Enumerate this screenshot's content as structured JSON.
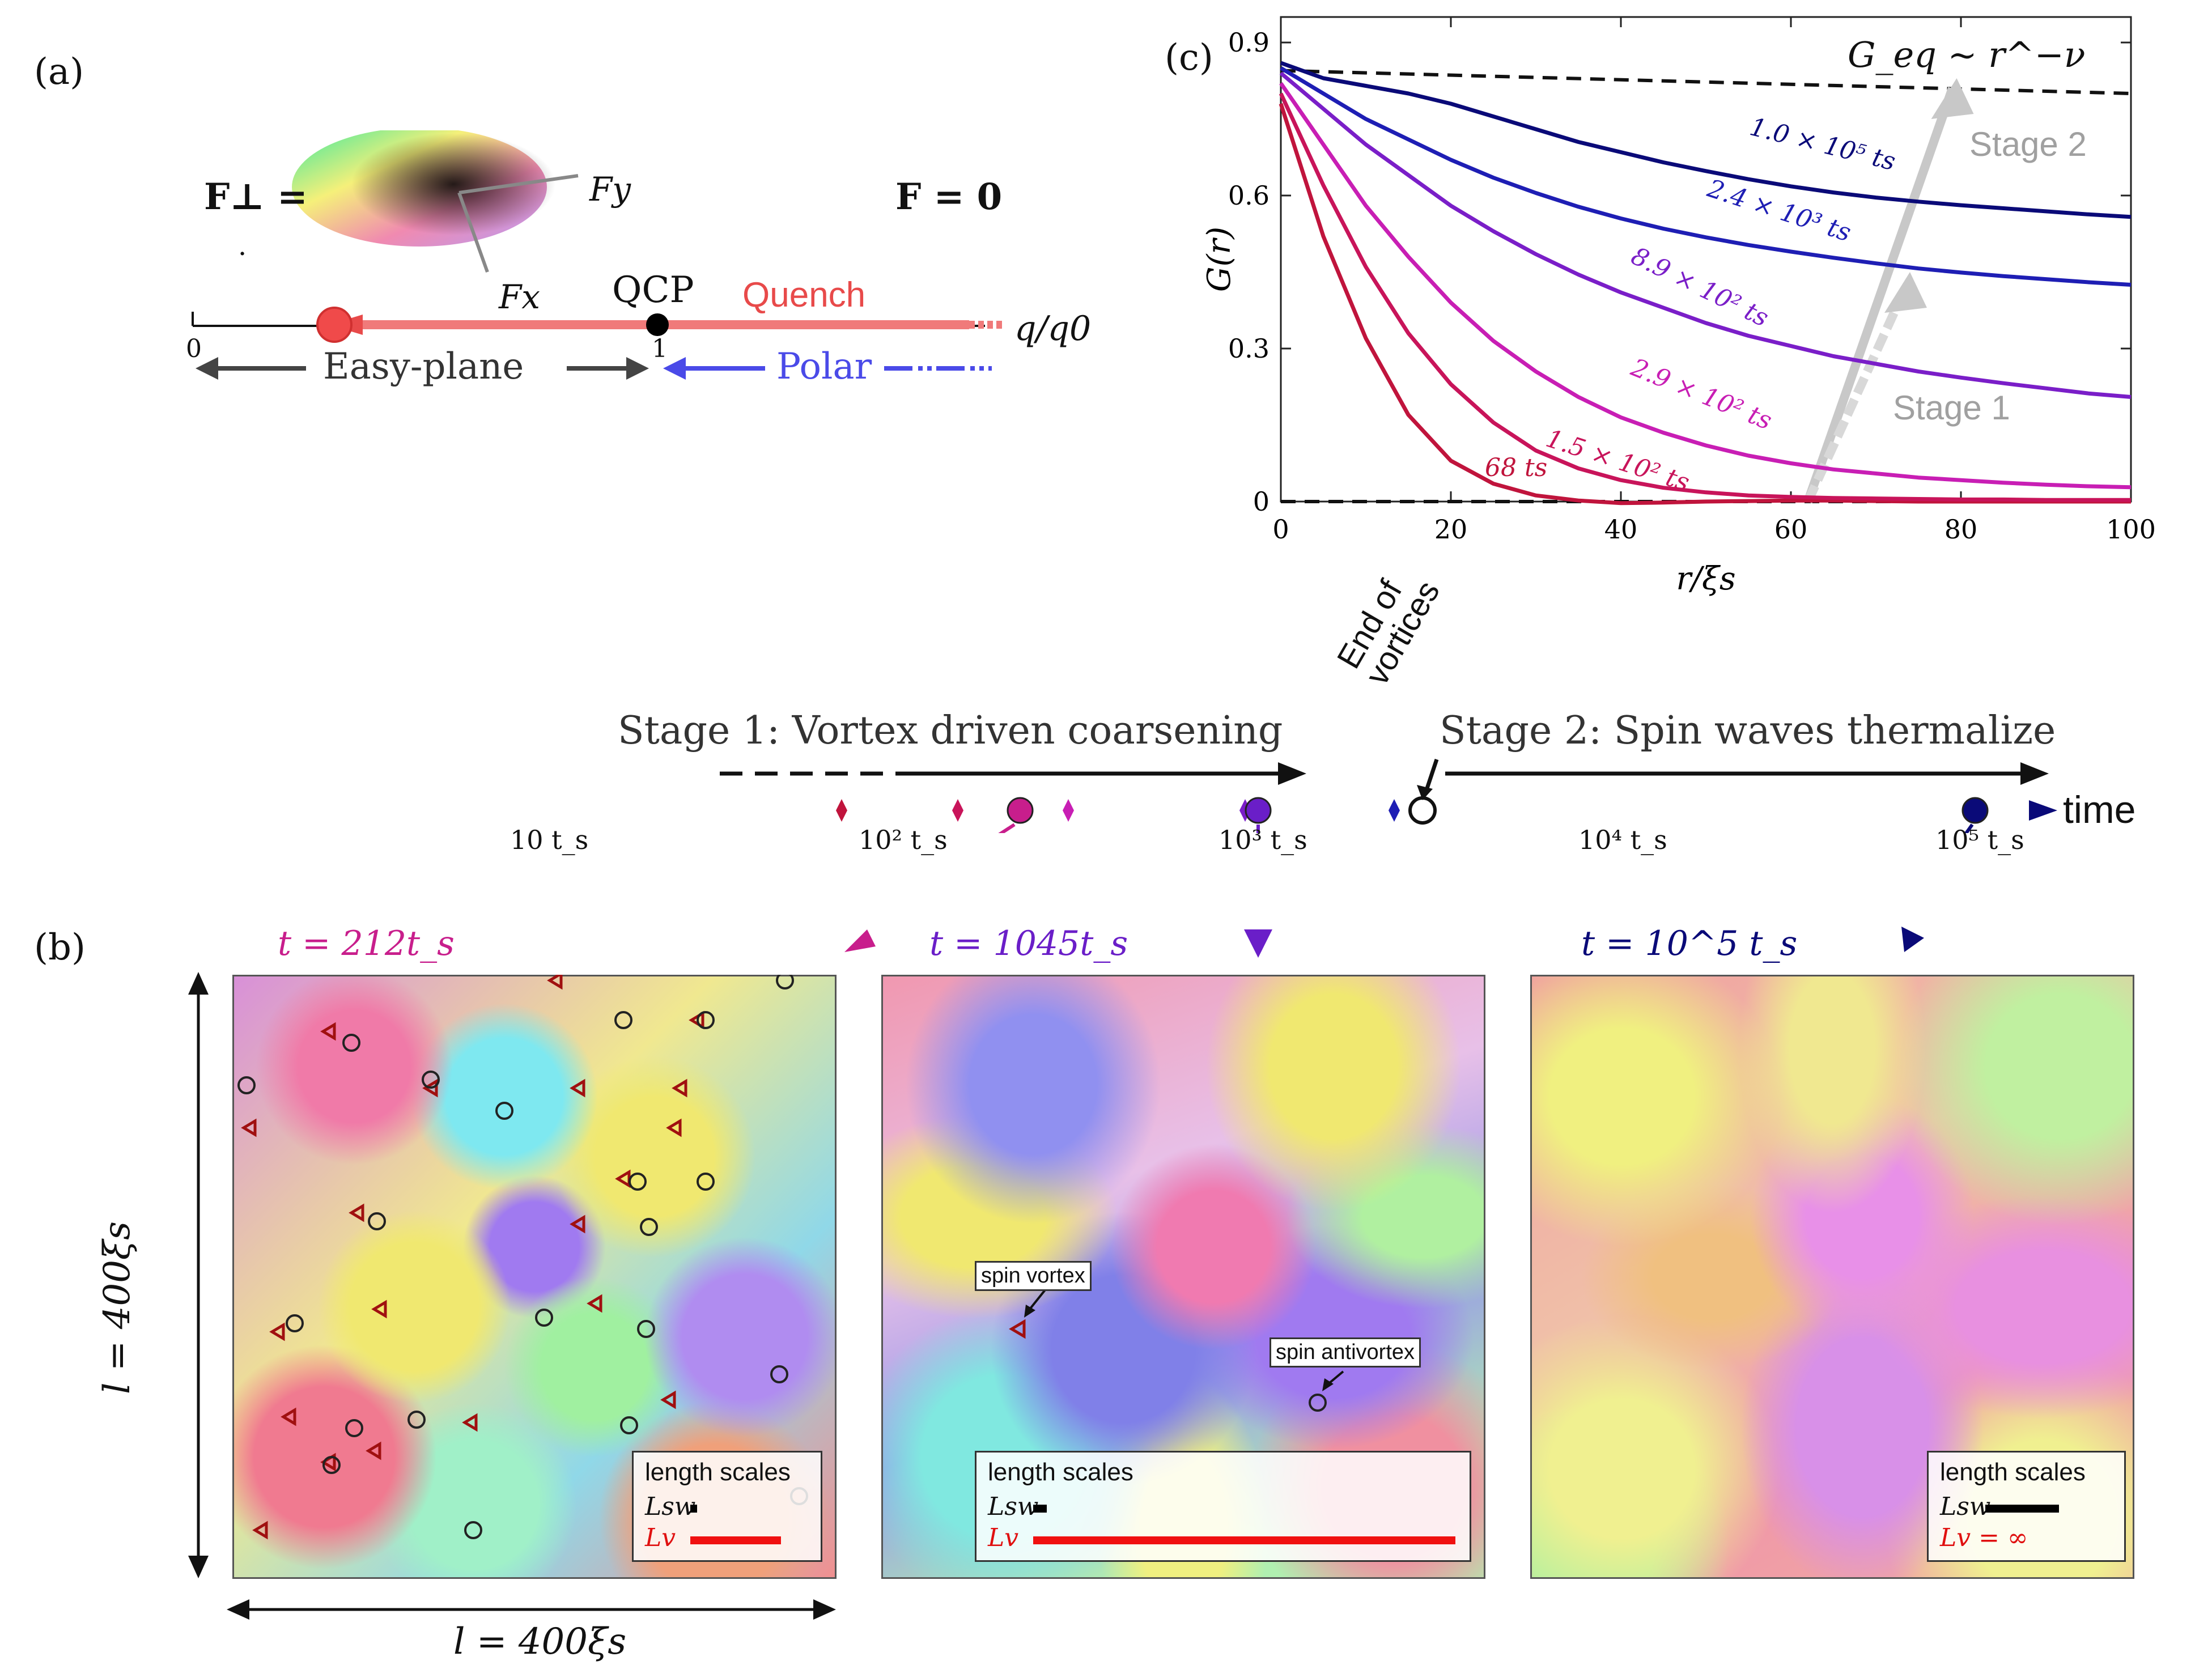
{
  "panel_a": {
    "label": "(a)",
    "f_perp": "F⊥ =",
    "f_zero": "F = 0",
    "fy_label": "Fy",
    "fx_label": "Fx",
    "qcp_label": "QCP",
    "quench_label": "Quench",
    "axis_label": "q/q0",
    "zero_tick": "0",
    "one_tick": "1",
    "easy_plane": "Easy-plane",
    "polar": "Polar",
    "dot": "·"
  },
  "panel_b": {
    "label": "(b)",
    "snap1_time": "t = 212t_s",
    "snap2_time": "t = 1045t_s",
    "snap3_time": "t = 10^5 t_s",
    "size_vertical": "l = 400ξs",
    "size_horizontal": "l = 400ξs",
    "legend_title": "length scales",
    "lsw": "Lsw",
    "lv": "Lv",
    "lv_inf": "Lv = ∞",
    "spin_vortex": "spin vortex",
    "spin_antivortex": "spin antivortex"
  },
  "timeline": {
    "stage1": "Stage 1: Vortex driven coarsening",
    "stage2": "Stage 2: Spin waves thermalize",
    "end_of_vortices": "End of vortices",
    "time_label": "time",
    "ticks": [
      "10 t_s",
      "10² t_s",
      "10³ t_s",
      "10⁴ t_s",
      "10⁵ t_s"
    ]
  },
  "panel_c": {
    "label": "(c)",
    "geq_label": "G_eq ~ r^−ν",
    "stage1_label": "Stage 1",
    "stage2_label": "Stage 2",
    "colors": {
      "t68": "#c0143c",
      "t150": "#c8145a",
      "t290": "#c81eb4",
      "t890": "#7a1ec8",
      "t2400": "#1e1eb4",
      "t1e5": "#0a0a78"
    }
  },
  "chart_data": {
    "type": "line",
    "title": "",
    "xlabel": "r/ξs",
    "ylabel": "G(r)",
    "xlim": [
      0,
      100
    ],
    "ylim": [
      0,
      0.95
    ],
    "xticks": [
      0,
      20,
      40,
      60,
      80,
      100
    ],
    "yticks": [
      0,
      0.3,
      0.6,
      0.9
    ],
    "xtick_labels": [
      "0",
      "20",
      "40",
      "60",
      "80",
      "100"
    ],
    "ytick_labels": [
      "0",
      "0.3",
      "0.6",
      "0.9"
    ],
    "x": [
      0,
      5,
      10,
      15,
      20,
      25,
      30,
      35,
      40,
      45,
      50,
      55,
      60,
      65,
      70,
      75,
      80,
      85,
      90,
      95,
      100
    ],
    "series": [
      {
        "name": "68 t_s",
        "label": "68 ts",
        "color": "#c0143c",
        "values": [
          0.78,
          0.52,
          0.32,
          0.17,
          0.08,
          0.035,
          0.012,
          0.002,
          -0.003,
          -0.002,
          0.0,
          0.001,
          0.002,
          0.002,
          0.001,
          0.0,
          0.0,
          0.0,
          0.0,
          0.0,
          0.0
        ]
      },
      {
        "name": "1.5 × 10² t_s",
        "label": "1.5 × 10² ts",
        "color": "#c8145a",
        "values": [
          0.8,
          0.62,
          0.46,
          0.33,
          0.23,
          0.155,
          0.1,
          0.065,
          0.042,
          0.027,
          0.018,
          0.012,
          0.009,
          0.007,
          0.006,
          0.005,
          0.004,
          0.004,
          0.003,
          0.003,
          0.003
        ]
      },
      {
        "name": "2.9 × 10² t_s",
        "label": "2.9 × 10² ts",
        "color": "#c81eb4",
        "values": [
          0.82,
          0.7,
          0.58,
          0.48,
          0.39,
          0.315,
          0.255,
          0.205,
          0.165,
          0.135,
          0.11,
          0.09,
          0.075,
          0.063,
          0.055,
          0.047,
          0.042,
          0.037,
          0.033,
          0.03,
          0.028
        ]
      },
      {
        "name": "8.9 × 10² t_s",
        "label": "8.9 × 10² ts",
        "color": "#7a1ec8",
        "values": [
          0.84,
          0.77,
          0.7,
          0.64,
          0.58,
          0.53,
          0.485,
          0.445,
          0.41,
          0.38,
          0.35,
          0.325,
          0.305,
          0.285,
          0.27,
          0.255,
          0.243,
          0.232,
          0.222,
          0.212,
          0.205
        ]
      },
      {
        "name": "2.4 × 10³ t_s",
        "label": "2.4 × 10³ ts",
        "color": "#1e1eb4",
        "values": [
          0.85,
          0.8,
          0.75,
          0.71,
          0.67,
          0.635,
          0.605,
          0.578,
          0.555,
          0.535,
          0.518,
          0.503,
          0.49,
          0.478,
          0.467,
          0.457,
          0.449,
          0.442,
          0.436,
          0.43,
          0.425
        ]
      },
      {
        "name": "1.0 × 10⁵ t_s",
        "label": "1.0 × 10⁵ ts",
        "color": "#0a0a78",
        "values": [
          0.86,
          0.83,
          0.815,
          0.8,
          0.78,
          0.755,
          0.73,
          0.705,
          0.685,
          0.665,
          0.648,
          0.632,
          0.618,
          0.606,
          0.596,
          0.588,
          0.581,
          0.575,
          0.569,
          0.563,
          0.558
        ]
      }
    ],
    "reference_lines": [
      {
        "name": "G_eq",
        "style": "dashed",
        "y_start": 0.845,
        "y_end": 0.8
      },
      {
        "name": "zero",
        "style": "dashed",
        "y_start": 0.0,
        "y_end": 0.0
      }
    ],
    "annotations": [
      "G_eq ~ r^−ν",
      "Stage 1",
      "Stage 2"
    ]
  }
}
